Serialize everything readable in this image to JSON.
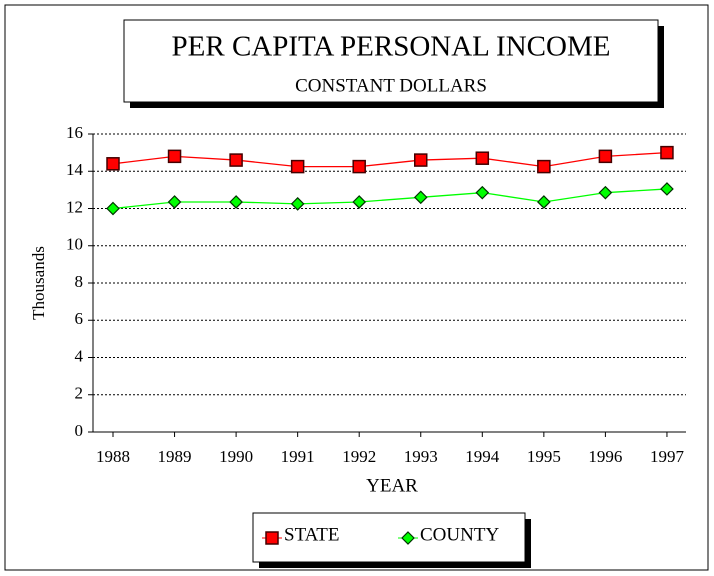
{
  "chart_data": {
    "type": "line",
    "title": "PER CAPITA PERSONAL INCOME",
    "subtitle": "CONSTANT DOLLARS",
    "x_label": "YEAR",
    "y_label": "Thousands",
    "categories": [
      "1988",
      "1989",
      "1990",
      "1991",
      "1992",
      "1993",
      "1994",
      "1995",
      "1996",
      "1997"
    ],
    "series": [
      {
        "name": "STATE",
        "color": "#ff0000",
        "marker": "square",
        "values": [
          14.4,
          14.8,
          14.6,
          14.25,
          14.25,
          14.6,
          14.7,
          14.25,
          14.8,
          15.0
        ]
      },
      {
        "name": "COUNTY",
        "color": "#00ff00",
        "marker": "diamond",
        "values": [
          12.0,
          12.35,
          12.35,
          12.25,
          12.35,
          12.6,
          12.85,
          12.35,
          12.85,
          13.05
        ]
      }
    ],
    "ylim": [
      0,
      16
    ],
    "yticks": [
      0,
      2,
      4,
      6,
      8,
      10,
      12,
      14,
      16
    ],
    "grid": true,
    "legend": "bottom"
  }
}
